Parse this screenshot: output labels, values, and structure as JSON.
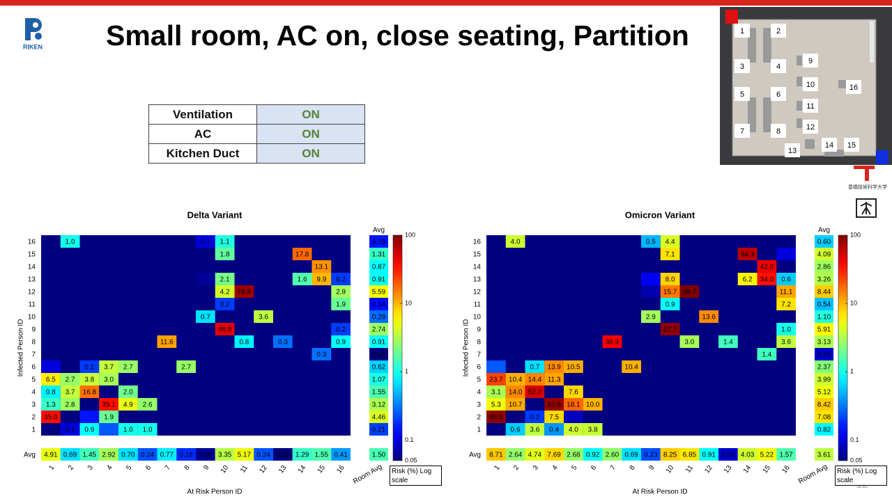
{
  "header": {
    "title": "Small room, AC on, close seating, Partition",
    "logo": "RIKEN",
    "partner": "豊橋技術科学大学",
    "page_number": 12
  },
  "table": {
    "rows": [
      [
        "Ventilation",
        "ON"
      ],
      [
        "AC",
        "ON"
      ],
      [
        "Kitchen Duct",
        "ON"
      ]
    ]
  },
  "floorplan": {
    "labels": [
      1,
      2,
      3,
      4,
      5,
      6,
      7,
      8,
      9,
      10,
      11,
      12,
      13,
      14,
      15,
      16
    ]
  },
  "chart_data": [
    {
      "type": "heatmap",
      "title": "Delta Variant",
      "xlabel": "At Risk Person ID",
      "ylabel": "Infected Person ID",
      "avg_label": "Avg",
      "room_avg_label": "Room Avg",
      "colorbar_label": "Risk (%) Log scale",
      "colormap": "jet",
      "log_scale": true,
      "clim": [
        0.05,
        100
      ],
      "cticks": [
        100,
        10,
        1,
        0.1,
        0.05
      ],
      "x": [
        1,
        2,
        3,
        4,
        5,
        6,
        7,
        8,
        9,
        10,
        11,
        12,
        13,
        14,
        15,
        16
      ],
      "y": [
        1,
        2,
        3,
        4,
        5,
        6,
        7,
        8,
        9,
        10,
        11,
        12,
        13,
        14,
        15,
        16
      ],
      "cells": [
        {
          "x": 2,
          "y": 16,
          "value": 1,
          "label": "1.0"
        },
        {
          "x": 9,
          "y": 16,
          "value": 0.1,
          "label": "0.1"
        },
        {
          "x": 10,
          "y": 16,
          "value": 1.1,
          "label": "1.1"
        },
        {
          "x": 10,
          "y": 15,
          "value": 1.8,
          "label": "1.8"
        },
        {
          "x": 14,
          "y": 15,
          "value": 17.8,
          "label": "17.8"
        },
        {
          "x": 15,
          "y": 14,
          "value": 13.1,
          "label": "13.1"
        },
        {
          "x": 9,
          "y": 13,
          "value": 0.06
        },
        {
          "x": 10,
          "y": 13,
          "value": 2.1,
          "label": "2.1"
        },
        {
          "x": 14,
          "y": 13,
          "value": 1.6,
          "label": "1.6"
        },
        {
          "x": 15,
          "y": 13,
          "value": 9.9,
          "label": "9.9"
        },
        {
          "x": 16,
          "y": 13,
          "value": 0.2,
          "label": "0.2"
        },
        {
          "x": 10,
          "y": 12,
          "value": 4.2,
          "label": "4.2"
        },
        {
          "x": 11,
          "y": 12,
          "value": 78.8,
          "label": "78.8"
        },
        {
          "x": 16,
          "y": 12,
          "value": 2.9,
          "label": "2.9"
        },
        {
          "x": 10,
          "y": 11,
          "value": 0.2,
          "label": "0.2"
        },
        {
          "x": 16,
          "y": 11,
          "value": 1.9,
          "label": "1.9"
        },
        {
          "x": 9,
          "y": 10,
          "value": 0.7,
          "label": "0.7"
        },
        {
          "x": 12,
          "y": 10,
          "value": 3.6,
          "label": "3.6"
        },
        {
          "x": 10,
          "y": 9,
          "value": 46.8,
          "label": "46.8"
        },
        {
          "x": 16,
          "y": 9,
          "value": 0.2,
          "label": "0.2"
        },
        {
          "x": 7,
          "y": 8,
          "value": 11.6,
          "label": "11.6"
        },
        {
          "x": 11,
          "y": 8,
          "value": 0.8,
          "label": "0.8"
        },
        {
          "x": 13,
          "y": 8,
          "value": 0.3,
          "label": "0.3"
        },
        {
          "x": 16,
          "y": 8,
          "value": 0.9,
          "label": "0.9"
        },
        {
          "x": 15,
          "y": 7,
          "value": 0.3,
          "label": "0.3"
        },
        {
          "x": 1,
          "y": 6,
          "value": 0.1
        },
        {
          "x": 3,
          "y": 6,
          "value": 0.2,
          "label": "0.2"
        },
        {
          "x": 4,
          "y": 6,
          "value": 3.7,
          "label": "3.7"
        },
        {
          "x": 5,
          "y": 6,
          "value": 2.7,
          "label": "2.7"
        },
        {
          "x": 8,
          "y": 6,
          "value": 2.7,
          "label": "2.7"
        },
        {
          "x": 1,
          "y": 5,
          "value": 6.5,
          "label": "6.5"
        },
        {
          "x": 2,
          "y": 5,
          "value": 2.7,
          "label": "2.7"
        },
        {
          "x": 3,
          "y": 5,
          "value": 3.8,
          "label": "3.8"
        },
        {
          "x": 4,
          "y": 5,
          "value": 3,
          "label": "3.0"
        },
        {
          "x": 1,
          "y": 4,
          "value": 0.8,
          "label": "0.8"
        },
        {
          "x": 2,
          "y": 4,
          "value": 3.7,
          "label": "3.7"
        },
        {
          "x": 3,
          "y": 4,
          "value": 16.8,
          "label": "16.8"
        },
        {
          "x": 5,
          "y": 4,
          "value": 2,
          "label": "2.0"
        },
        {
          "x": 1,
          "y": 3,
          "value": 1.3,
          "label": "1.3"
        },
        {
          "x": 2,
          "y": 3,
          "value": 2.8,
          "label": "2.8"
        },
        {
          "x": 4,
          "y": 3,
          "value": 35.1,
          "label": "35.1"
        },
        {
          "x": 5,
          "y": 3,
          "value": 4.9,
          "label": "4.9"
        },
        {
          "x": 6,
          "y": 3,
          "value": 2.6,
          "label": "2.6"
        },
        {
          "x": 1,
          "y": 2,
          "value": 35,
          "label": "35.0"
        },
        {
          "x": 3,
          "y": 2,
          "value": 0.15
        },
        {
          "x": 4,
          "y": 2,
          "value": 1.9,
          "label": "1.9"
        },
        {
          "x": 2,
          "y": 1,
          "value": 0.1,
          "label": "0.1"
        },
        {
          "x": 3,
          "y": 1,
          "value": 0.9,
          "label": "0.9"
        },
        {
          "x": 4,
          "y": 1,
          "value": 0.25
        },
        {
          "x": 5,
          "y": 1,
          "value": 1,
          "label": "1.0"
        },
        {
          "x": 6,
          "y": 1,
          "value": 1,
          "label": "1.0"
        }
      ],
      "row_avg": [
        0.21,
        4.46,
        3.12,
        1.55,
        1.07,
        0.62,
        0.02,
        0.91,
        2.74,
        0.29,
        0.14,
        5.59,
        0.91,
        0.87,
        1.31,
        0.15
      ],
      "row_avg_labels": [
        "0.21",
        "4.46",
        "3.12",
        "1.55",
        "1.07",
        "0.62",
        "0.02",
        "0.91",
        "2.74",
        "0.29",
        "0.14",
        "5.59",
        "0.91",
        "0.87",
        "1.31",
        "0.15"
      ],
      "col_avg": [
        4.91,
        0.69,
        1.45,
        2.92,
        0.7,
        0.24,
        0.77,
        0.18,
        0.06,
        3.35,
        5.17,
        0.24,
        0.02,
        1.29,
        1.55,
        0.41
      ],
      "col_avg_labels": [
        "4.91",
        "0.69",
        "1.45",
        "2.92",
        "0.70",
        "0.24",
        "0.77",
        "0.18",
        "0.06",
        "3.35",
        "5.17",
        "0.24",
        "0.02",
        "1.29",
        "1.55",
        "0.41"
      ],
      "room_avg": 1.5,
      "room_avg_value_label": "1.50"
    },
    {
      "type": "heatmap",
      "title": "Omicron Variant",
      "xlabel": "At Risk Person ID",
      "ylabel": "Infected Person ID",
      "avg_label": "Avg",
      "room_avg_label": "Room Avg",
      "colorbar_label": "Risk (%) Log scale",
      "colormap": "jet",
      "log_scale": true,
      "clim": [
        0.05,
        100
      ],
      "cticks": [
        100,
        10,
        1,
        0.1,
        0.05
      ],
      "x": [
        1,
        2,
        3,
        4,
        5,
        6,
        7,
        8,
        9,
        10,
        11,
        12,
        13,
        14,
        15,
        16
      ],
      "y": [
        1,
        2,
        3,
        4,
        5,
        6,
        7,
        8,
        9,
        10,
        11,
        12,
        13,
        14,
        15,
        16
      ],
      "cells": [
        {
          "x": 2,
          "y": 16,
          "value": 4,
          "label": "4.0"
        },
        {
          "x": 9,
          "y": 16,
          "value": 0.5,
          "label": "0.5"
        },
        {
          "x": 10,
          "y": 16,
          "value": 4.4,
          "label": "4.4"
        },
        {
          "x": 10,
          "y": 15,
          "value": 7.1,
          "label": "7.1"
        },
        {
          "x": 14,
          "y": 15,
          "value": 64.3,
          "label": "64.3"
        },
        {
          "x": 16,
          "y": 15,
          "value": 0.1
        },
        {
          "x": 15,
          "y": 14,
          "value": 42.8,
          "label": "42.8"
        },
        {
          "x": 9,
          "y": 13,
          "value": 0.12
        },
        {
          "x": 10,
          "y": 13,
          "value": 8,
          "label": "8.0"
        },
        {
          "x": 14,
          "y": 13,
          "value": 6.2,
          "label": "6.2"
        },
        {
          "x": 15,
          "y": 13,
          "value": 34,
          "label": "34.0"
        },
        {
          "x": 16,
          "y": 13,
          "value": 0.6,
          "label": "0.6"
        },
        {
          "x": 9,
          "y": 12,
          "value": 0.07
        },
        {
          "x": 10,
          "y": 12,
          "value": 15.7,
          "label": "15.7"
        },
        {
          "x": 11,
          "y": 12,
          "value": 99.7,
          "label": "99.7"
        },
        {
          "x": 16,
          "y": 12,
          "value": 11.1,
          "label": "11.1"
        },
        {
          "x": 10,
          "y": 11,
          "value": 0.9,
          "label": "0.9"
        },
        {
          "x": 16,
          "y": 11,
          "value": 7.2,
          "label": "7.2"
        },
        {
          "x": 9,
          "y": 10,
          "value": 2.9,
          "label": "2.9"
        },
        {
          "x": 12,
          "y": 10,
          "value": 13.6,
          "label": "13.6"
        },
        {
          "x": 10,
          "y": 9,
          "value": 87.7,
          "label": "87.7"
        },
        {
          "x": 16,
          "y": 9,
          "value": 1,
          "label": "1.0"
        },
        {
          "x": 7,
          "y": 8,
          "value": 38.9,
          "label": "38.9"
        },
        {
          "x": 11,
          "y": 8,
          "value": 3,
          "label": "3.0"
        },
        {
          "x": 13,
          "y": 8,
          "value": 1.4,
          "label": "1.4"
        },
        {
          "x": 16,
          "y": 8,
          "value": 3.6,
          "label": "3.6"
        },
        {
          "x": 15,
          "y": 7,
          "value": 1.4,
          "label": "1.4"
        },
        {
          "x": 1,
          "y": 6,
          "value": 0.25
        },
        {
          "x": 3,
          "y": 6,
          "value": 0.7,
          "label": "0.7"
        },
        {
          "x": 4,
          "y": 6,
          "value": 13.9,
          "label": "13.9"
        },
        {
          "x": 5,
          "y": 6,
          "value": 10.5,
          "label": "10.5"
        },
        {
          "x": 8,
          "y": 6,
          "value": 10.4,
          "label": "10.4"
        },
        {
          "x": 1,
          "y": 5,
          "value": 23.7,
          "label": "23.7"
        },
        {
          "x": 2,
          "y": 5,
          "value": 10.4,
          "label": "10.4"
        },
        {
          "x": 3,
          "y": 5,
          "value": 14.4,
          "label": "14.4"
        },
        {
          "x": 4,
          "y": 5,
          "value": 11.3,
          "label": "11.3"
        },
        {
          "x": 1,
          "y": 4,
          "value": 3.1,
          "label": "3.1"
        },
        {
          "x": 2,
          "y": 4,
          "value": 14,
          "label": "14.0"
        },
        {
          "x": 3,
          "y": 4,
          "value": 52.2,
          "label": "52.2"
        },
        {
          "x": 5,
          "y": 4,
          "value": 7.6,
          "label": "7.6"
        },
        {
          "x": 1,
          "y": 3,
          "value": 5.3,
          "label": "5.3"
        },
        {
          "x": 2,
          "y": 3,
          "value": 10.7,
          "label": "10.7"
        },
        {
          "x": 4,
          "y": 3,
          "value": 82.8,
          "label": "82.8"
        },
        {
          "x": 5,
          "y": 3,
          "value": 18.1,
          "label": "18.1"
        },
        {
          "x": 6,
          "y": 3,
          "value": 10,
          "label": "10.0"
        },
        {
          "x": 1,
          "y": 2,
          "value": 88.5,
          "label": "88.5"
        },
        {
          "x": 3,
          "y": 2,
          "value": 0.2,
          "label": "0.2"
        },
        {
          "x": 4,
          "y": 2,
          "value": 7.5,
          "label": "7.5"
        },
        {
          "x": 5,
          "y": 2,
          "value": 0.08
        },
        {
          "x": 2,
          "y": 1,
          "value": 0.6,
          "label": "0.6"
        },
        {
          "x": 3,
          "y": 1,
          "value": 3.6,
          "label": "3.6"
        },
        {
          "x": 4,
          "y": 1,
          "value": 0.4,
          "label": "0.4"
        },
        {
          "x": 5,
          "y": 1,
          "value": 4,
          "label": "4.0"
        },
        {
          "x": 6,
          "y": 1,
          "value": 3.8,
          "label": "3.8"
        }
      ],
      "row_avg": [
        0.82,
        7.08,
        8.42,
        5.12,
        3.99,
        2.37,
        0.09,
        3.13,
        5.91,
        1.1,
        0.54,
        8.44,
        3.26,
        2.86,
        4.09,
        0.6
      ],
      "row_avg_labels": [
        "0.82",
        "7.08",
        "8.42",
        "5.12",
        "3.99",
        "2.37",
        "0.09",
        "3.13",
        "5.91",
        "1.10",
        "0.54",
        "8.44",
        "3.26",
        "2.86",
        "4.09",
        "0.60"
      ],
      "col_avg": [
        8.71,
        2.64,
        4.74,
        7.69,
        2.68,
        0.92,
        2.6,
        0.69,
        0.23,
        8.25,
        6.85,
        0.91,
        0.09,
        4.03,
        5.22,
        1.57
      ],
      "col_avg_labels": [
        "8.71",
        "2.64",
        "4.74",
        "7.69",
        "2.68",
        "0.92",
        "2.60",
        "0.69",
        "0.23",
        "8.25",
        "6.85",
        "0.91",
        "0.09",
        "4.03",
        "5.22",
        "1.57"
      ],
      "room_avg": 3.61,
      "room_avg_value_label": "3.61"
    }
  ]
}
